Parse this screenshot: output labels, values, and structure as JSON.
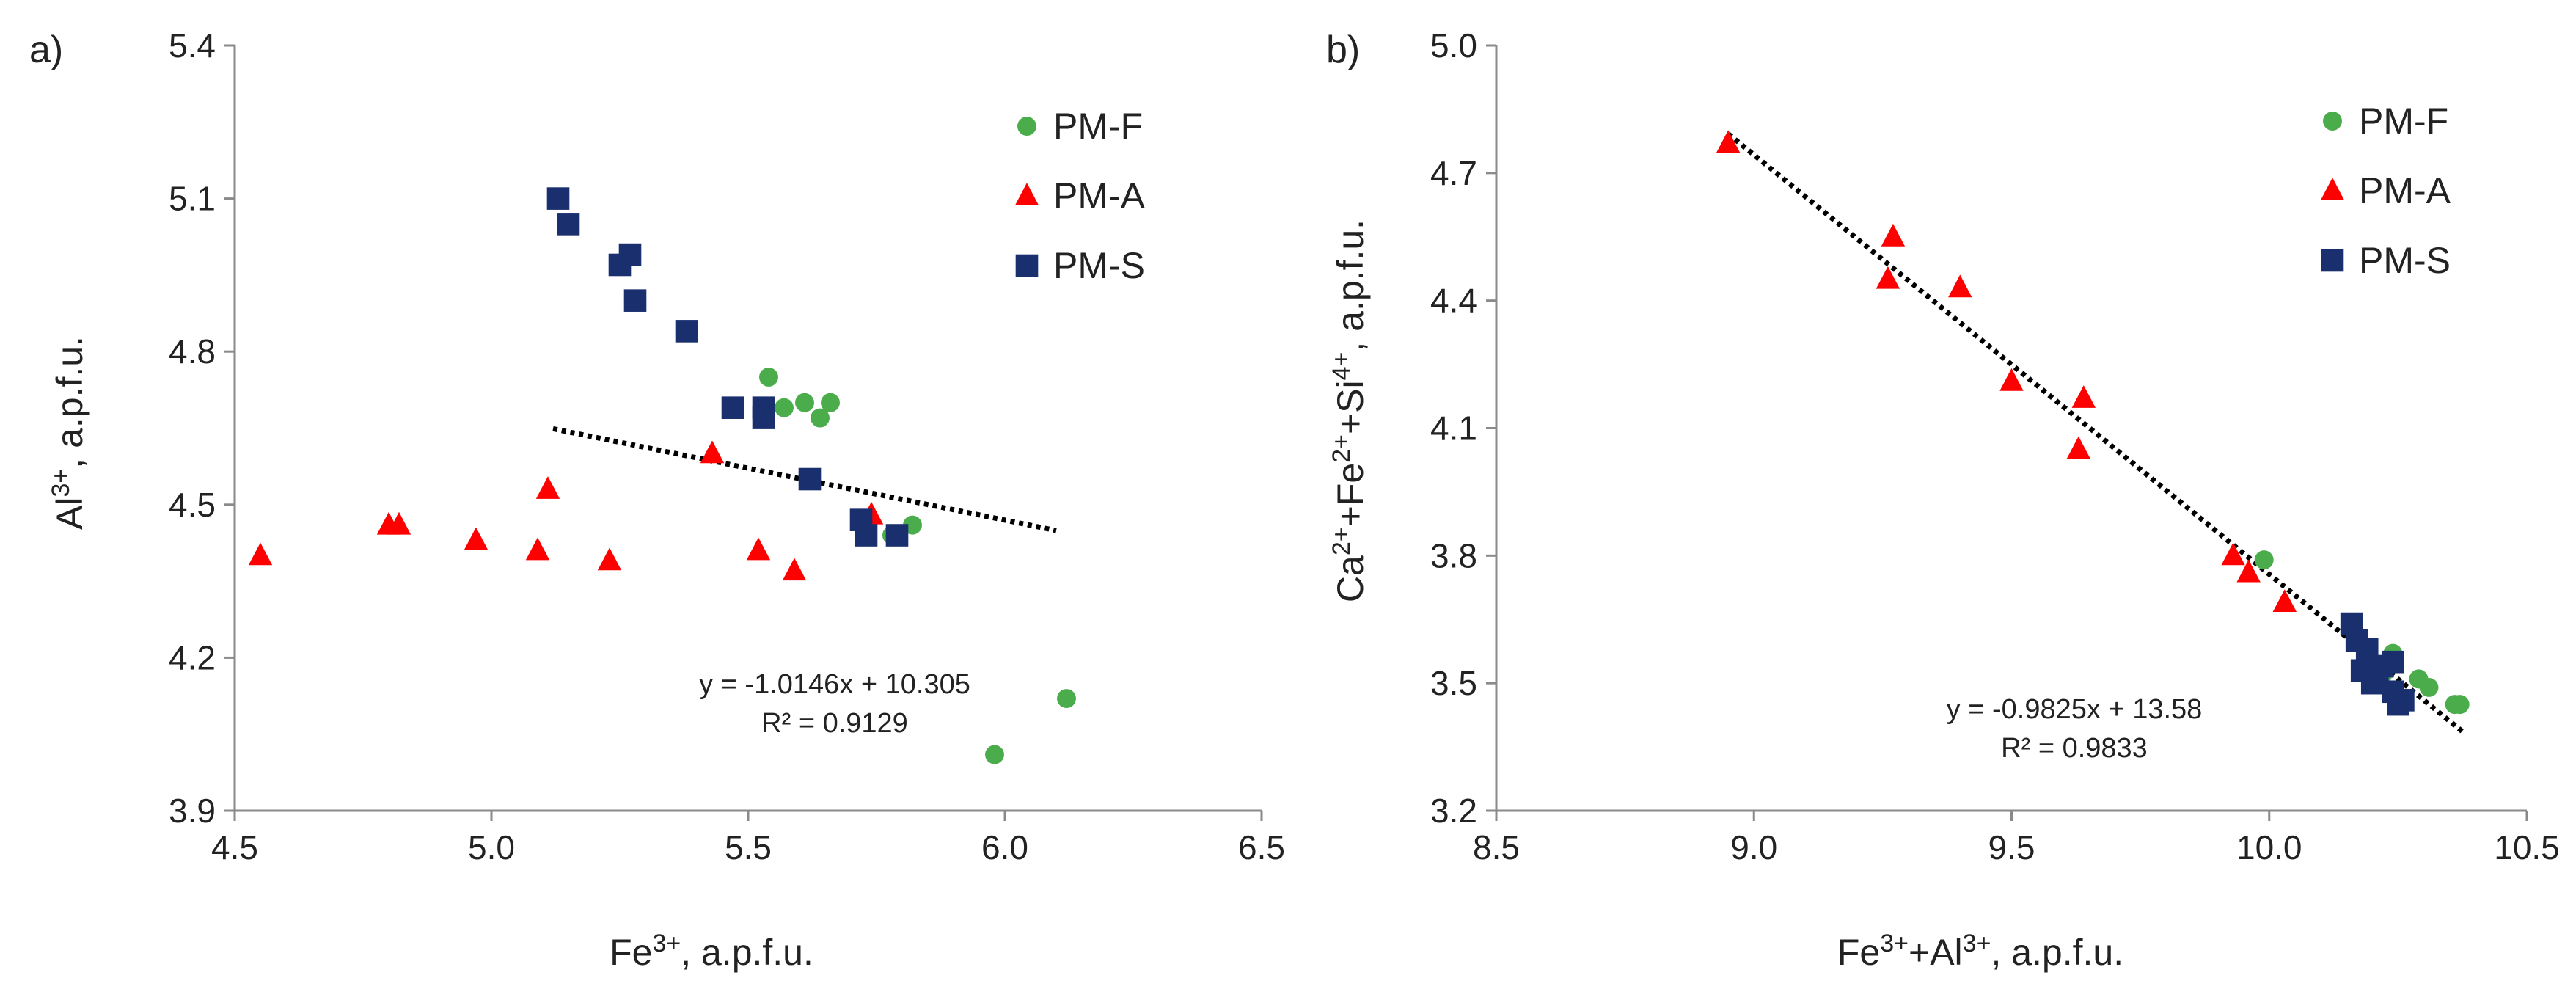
{
  "chart_data": [
    {
      "type": "scatter",
      "panel_label": "a)",
      "xlabel": "Fe³⁺, a.p.f.u.",
      "xlabel_parts": {
        "base": "Fe",
        "sup": "3+",
        "rest": ", a.p.f.u."
      },
      "ylabel": "Al³⁺, a.p.f.u.",
      "ylabel_parts": {
        "base": "Al",
        "sup": "3+",
        "rest": ", a.p.f.u."
      },
      "xlim": [
        4.5,
        6.5
      ],
      "ylim": [
        3.9,
        5.4
      ],
      "xticks": [
        "4.5",
        "5.0",
        "5.5",
        "6.0",
        "6.5"
      ],
      "yticks": [
        "3.9",
        "4.2",
        "4.5",
        "4.8",
        "5.1",
        "5.4"
      ],
      "legend_position": "top-right",
      "series": [
        {
          "name": "PM-F",
          "color": "#4aac4a",
          "marker": "circle",
          "points": [
            [
              5.54,
              4.75
            ],
            [
              5.57,
              4.69
            ],
            [
              5.61,
              4.7
            ],
            [
              5.64,
              4.67
            ],
            [
              5.66,
              4.7
            ],
            [
              5.82,
              4.46
            ],
            [
              5.78,
              4.44
            ],
            [
              6.12,
              4.12
            ],
            [
              5.98,
              4.01
            ]
          ]
        },
        {
          "name": "PM-A",
          "color": "#ff0000",
          "marker": "triangle",
          "points": [
            [
              4.55,
              4.4
            ],
            [
              4.8,
              4.46
            ],
            [
              4.82,
              4.46
            ],
            [
              4.97,
              4.43
            ],
            [
              5.09,
              4.41
            ],
            [
              5.11,
              4.53
            ],
            [
              5.23,
              4.39
            ],
            [
              5.43,
              4.6
            ],
            [
              5.52,
              4.41
            ],
            [
              5.59,
              4.37
            ],
            [
              5.74,
              4.48
            ]
          ]
        },
        {
          "name": "PM-S",
          "color": "#1a2f6e",
          "marker": "square",
          "points": [
            [
              5.13,
              5.1
            ],
            [
              5.15,
              5.05
            ],
            [
              5.25,
              4.97
            ],
            [
              5.27,
              4.99
            ],
            [
              5.28,
              4.9
            ],
            [
              5.38,
              4.84
            ],
            [
              5.47,
              4.69
            ],
            [
              5.53,
              4.69
            ],
            [
              5.53,
              4.67
            ],
            [
              5.62,
              4.55
            ],
            [
              5.72,
              4.47
            ],
            [
              5.73,
              4.44
            ],
            [
              5.79,
              4.44
            ]
          ]
        }
      ],
      "trendline": {
        "x": [
          5.12,
          6.1
        ],
        "style": "dotted"
      },
      "equation": "y = -1.0146x + 10.305",
      "r2": "R² = 0.9129"
    },
    {
      "type": "scatter",
      "panel_label": "b)",
      "xlabel": "Fe³⁺+Al³⁺, a.p.f.u.",
      "ylabel": "Ca²⁺+Fe²⁺+Si⁴⁺, a.p.f.u.",
      "xlim": [
        8.5,
        10.5
      ],
      "ylim": [
        3.2,
        5.0
      ],
      "xticks": [
        "8.5",
        "9.0",
        "9.5",
        "10.0",
        "10.5"
      ],
      "yticks": [
        "3.2",
        "3.5",
        "3.8",
        "4.1",
        "4.4",
        "4.7",
        "5.0"
      ],
      "legend_position": "top-right",
      "series": [
        {
          "name": "PM-F",
          "color": "#4aac4a",
          "marker": "circle",
          "points": [
            [
              9.99,
              3.79
            ],
            [
              10.24,
              3.57
            ],
            [
              10.29,
              3.51
            ],
            [
              10.31,
              3.49
            ],
            [
              10.36,
              3.45
            ],
            [
              10.37,
              3.45
            ],
            [
              10.22,
              3.52
            ]
          ]
        },
        {
          "name": "PM-A",
          "color": "#ff0000",
          "marker": "triangle",
          "points": [
            [
              8.95,
              4.77
            ],
            [
              9.27,
              4.55
            ],
            [
              9.26,
              4.45
            ],
            [
              9.4,
              4.43
            ],
            [
              9.5,
              4.21
            ],
            [
              9.64,
              4.17
            ],
            [
              9.63,
              4.05
            ],
            [
              9.93,
              3.8
            ],
            [
              9.96,
              3.76
            ],
            [
              10.03,
              3.69
            ]
          ]
        },
        {
          "name": "PM-S",
          "color": "#1a2f6e",
          "marker": "square",
          "points": [
            [
              10.16,
              3.64
            ],
            [
              10.17,
              3.6
            ],
            [
              10.19,
              3.58
            ],
            [
              10.18,
              3.53
            ],
            [
              10.2,
              3.5
            ],
            [
              10.22,
              3.54
            ],
            [
              10.24,
              3.55
            ],
            [
              10.24,
              3.48
            ],
            [
              10.25,
              3.45
            ],
            [
              10.21,
              3.51
            ],
            [
              10.26,
              3.46
            ]
          ]
        }
      ],
      "trendline": {
        "x": [
          8.95,
          10.38
        ],
        "style": "dotted"
      },
      "equation": "y = -0.9825x + 13.58",
      "r2": "R² = 0.9833"
    }
  ]
}
